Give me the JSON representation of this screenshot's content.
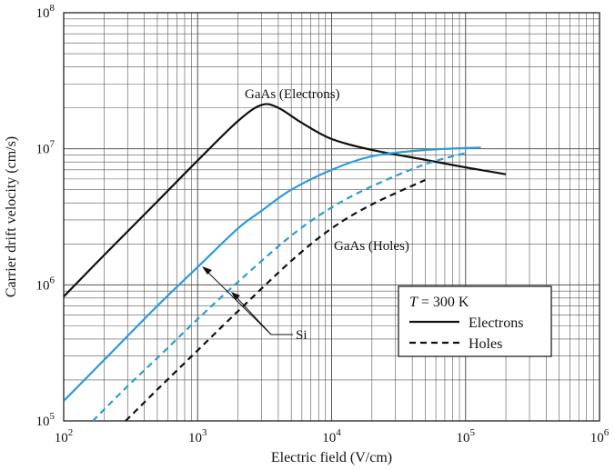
{
  "chart_data": {
    "type": "line",
    "xlabel": "Electric field (V/cm)",
    "ylabel": "Carrier drift velocity (cm/s)",
    "xscale": "log",
    "yscale": "log",
    "xlim": [
      100,
      1000000
    ],
    "ylim": [
      100000,
      100000000
    ],
    "grid": true,
    "x_ticks": [
      {
        "base": "10",
        "exp": "2"
      },
      {
        "base": "10",
        "exp": "3"
      },
      {
        "base": "10",
        "exp": "4"
      },
      {
        "base": "10",
        "exp": "5"
      },
      {
        "base": "10",
        "exp": "6"
      }
    ],
    "y_ticks": [
      {
        "base": "10",
        "exp": "5"
      },
      {
        "base": "10",
        "exp": "6"
      },
      {
        "base": "10",
        "exp": "7"
      },
      {
        "base": "10",
        "exp": "8"
      }
    ],
    "series": [
      {
        "material": "GaAs",
        "carrier": "Electrons",
        "style": "solid",
        "color": "#111111",
        "x": [
          100,
          200,
          500,
          1000,
          2000,
          3000,
          4000,
          6000,
          10000,
          20000,
          50000,
          100000,
          200000
        ],
        "y": [
          820000,
          1650000,
          4100000,
          8200000,
          16000000,
          21000000,
          20000000,
          15500000,
          11800000,
          9800000,
          8300000,
          7300000,
          6500000
        ]
      },
      {
        "material": "GaAs",
        "carrier": "Holes",
        "style": "dashed",
        "color": "#111111",
        "x": [
          290,
          500,
          1000,
          2000,
          5000,
          10000,
          20000,
          50000
        ],
        "y": [
          100000,
          170000,
          330000,
          640000,
          1500000,
          2600000,
          3900000,
          5900000
        ]
      },
      {
        "material": "Si",
        "carrier": "Electrons",
        "style": "solid",
        "color": "#2b9cd8",
        "x": [
          100,
          200,
          500,
          1000,
          2000,
          3000,
          5000,
          10000,
          20000,
          50000,
          130000
        ],
        "y": [
          140000,
          280000,
          700000,
          1350000,
          2600000,
          3500000,
          5000000,
          7000000,
          8800000,
          9800000,
          10200000
        ]
      },
      {
        "material": "Si",
        "carrier": "Holes",
        "style": "dashed",
        "color": "#2b9cd8",
        "x": [
          165,
          300,
          500,
          1000,
          2000,
          5000,
          10000,
          20000,
          50000,
          100000
        ],
        "y": [
          100000,
          180000,
          290000,
          560000,
          1050000,
          2300000,
          3700000,
          5300000,
          7700000,
          9300000
        ]
      }
    ],
    "annotations": {
      "gaas_electrons": "GaAs (Electrons)",
      "gaas_holes": "GaAs (Holes)",
      "si": "Si"
    },
    "legend": {
      "placement": "lower-right",
      "title_symbol": "T",
      "title_value": " = 300 K",
      "entries": [
        {
          "label": "Electrons",
          "style": "solid"
        },
        {
          "label": "Holes",
          "style": "dashed"
        }
      ]
    }
  }
}
